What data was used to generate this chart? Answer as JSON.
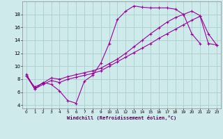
{
  "xlabel": "Windchill (Refroidissement éolien,°C)",
  "bg_color": "#ceeaea",
  "line_color": "#990099",
  "grid_color": "#aacece",
  "xlim": [
    -0.5,
    23.5
  ],
  "ylim": [
    3.5,
    20.0
  ],
  "xticks": [
    0,
    1,
    2,
    3,
    4,
    5,
    6,
    7,
    8,
    9,
    10,
    11,
    12,
    13,
    14,
    15,
    16,
    17,
    18,
    19,
    20,
    21,
    22,
    23
  ],
  "yticks": [
    4,
    6,
    8,
    10,
    12,
    14,
    16,
    18
  ],
  "line1_x": [
    0,
    1,
    2,
    3,
    4,
    5,
    6,
    7,
    8,
    9,
    10,
    11,
    12,
    13,
    14,
    15,
    16,
    17,
    18,
    19,
    20,
    21
  ],
  "line1_y": [
    8.8,
    6.5,
    7.5,
    7.2,
    6.2,
    4.7,
    4.3,
    7.7,
    8.6,
    10.5,
    13.5,
    17.2,
    18.5,
    19.3,
    19.1,
    19.0,
    19.0,
    19.0,
    18.8,
    18.0,
    15.0,
    13.5
  ],
  "line2_x": [
    0,
    1,
    2,
    3,
    4,
    5,
    6,
    7,
    8,
    9,
    10,
    11,
    12,
    13,
    14,
    15,
    16,
    17,
    18,
    19,
    20,
    21,
    22,
    23
  ],
  "line2_y": [
    8.5,
    6.5,
    7.2,
    7.8,
    7.5,
    8.0,
    8.3,
    8.6,
    8.9,
    9.3,
    10.0,
    10.7,
    11.4,
    12.1,
    12.8,
    13.5,
    14.3,
    15.0,
    15.7,
    16.4,
    17.1,
    17.7,
    13.5,
    13.3
  ],
  "line3_x": [
    0,
    1,
    2,
    3,
    4,
    5,
    6,
    7,
    8,
    9,
    10,
    11,
    12,
    13,
    14,
    15,
    16,
    17,
    18,
    19,
    20,
    21,
    22,
    23
  ],
  "line3_y": [
    8.5,
    6.8,
    7.4,
    8.2,
    8.0,
    8.4,
    8.7,
    9.0,
    9.3,
    9.7,
    10.4,
    11.1,
    12.0,
    13.0,
    14.0,
    15.0,
    15.9,
    16.8,
    17.5,
    18.0,
    18.5,
    17.8,
    15.0,
    13.3
  ]
}
